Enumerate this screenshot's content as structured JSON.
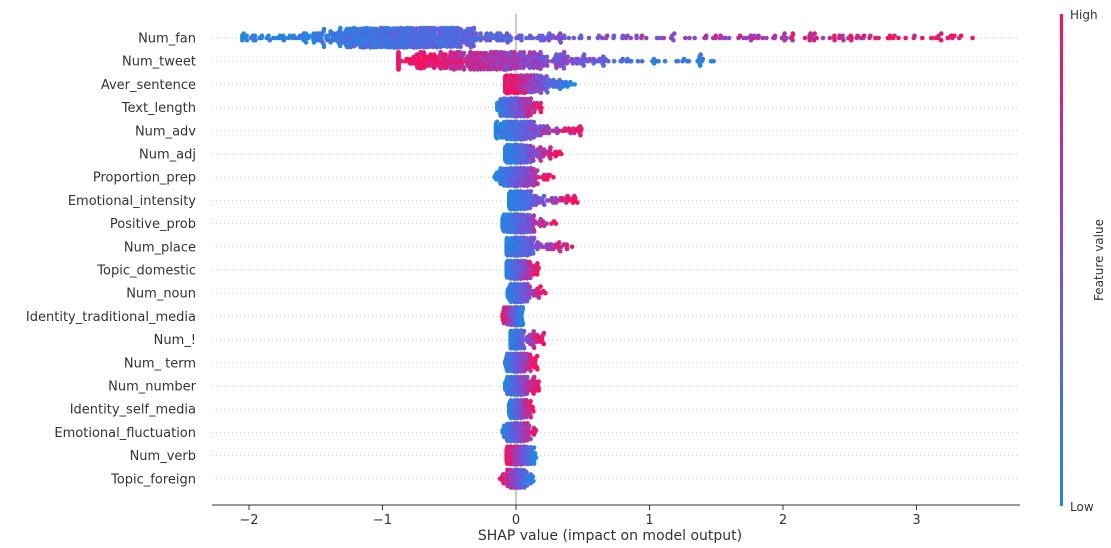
{
  "chart_data": {
    "type": "scatter",
    "subtype": "shap_beeswarm",
    "xlabel": "SHAP value (impact on model output)",
    "xlim": [
      -2.3,
      3.7
    ],
    "xticks": [
      -2,
      -1,
      0,
      1,
      2,
      3
    ],
    "xtick_labels": [
      "−2",
      "−1",
      "0",
      "1",
      "2",
      "3"
    ],
    "grid": false,
    "colorbar": {
      "label": "Feature value",
      "high_label": "High",
      "low_label": "Low",
      "low_color": "#1e88e5",
      "mid_color": "#7b4fd9",
      "high_color": "#ff0d57"
    },
    "features": [
      {
        "name": "Num_fan",
        "min": -2.05,
        "max": 3.42,
        "center": -0.85,
        "spread": 0.9,
        "trend": 1
      },
      {
        "name": "Num_tweet",
        "min": -0.88,
        "max": 1.48,
        "center": -0.25,
        "spread": 0.4,
        "trend": -1
      },
      {
        "name": "Aver_sentence",
        "min": -0.08,
        "max": 0.44,
        "center": 0.0,
        "spread": 0.12,
        "trend": -1
      },
      {
        "name": "Text_length",
        "min": -0.14,
        "max": 0.19,
        "center": 0.0,
        "spread": 0.06,
        "trend": 1
      },
      {
        "name": "Num_adv",
        "min": -0.15,
        "max": 0.49,
        "center": 0.0,
        "spread": 0.08,
        "trend": 1
      },
      {
        "name": "Num_adj",
        "min": -0.08,
        "max": 0.34,
        "center": -0.01,
        "spread": 0.06,
        "trend": 1
      },
      {
        "name": "Proportion_prep",
        "min": -0.16,
        "max": 0.28,
        "center": 0.0,
        "spread": 0.06,
        "trend": 1
      },
      {
        "name": "Emotional_intensity",
        "min": -0.05,
        "max": 0.46,
        "center": 0.0,
        "spread": 0.06,
        "trend": 1
      },
      {
        "name": "Positive_prob",
        "min": -0.1,
        "max": 0.3,
        "center": 0.0,
        "spread": 0.05,
        "trend": 1
      },
      {
        "name": "Num_place",
        "min": -0.07,
        "max": 0.42,
        "center": 0.0,
        "spread": 0.05,
        "trend": 1
      },
      {
        "name": "Topic_domestic",
        "min": -0.07,
        "max": 0.17,
        "center": 0.0,
        "spread": 0.04,
        "trend": 1
      },
      {
        "name": "Num_noun",
        "min": -0.06,
        "max": 0.22,
        "center": 0.0,
        "spread": 0.04,
        "trend": 1
      },
      {
        "name": "Identity_traditional_media",
        "min": -0.1,
        "max": 0.05,
        "center": 0.0,
        "spread": 0.03,
        "trend": -1
      },
      {
        "name": "Num_!",
        "min": -0.04,
        "max": 0.21,
        "center": 0.0,
        "spread": 0.03,
        "trend": 1
      },
      {
        "name": "Num_ term",
        "min": -0.08,
        "max": 0.16,
        "center": 0.0,
        "spread": 0.04,
        "trend": 1
      },
      {
        "name": "Num_number",
        "min": -0.08,
        "max": 0.17,
        "center": 0.0,
        "spread": 0.04,
        "trend": 1
      },
      {
        "name": "Identity_self_media",
        "min": -0.05,
        "max": 0.13,
        "center": 0.0,
        "spread": 0.03,
        "trend": 1
      },
      {
        "name": "Emotional_fluctuation",
        "min": -0.1,
        "max": 0.15,
        "center": 0.0,
        "spread": 0.04,
        "trend": 1
      },
      {
        "name": "Num_verb",
        "min": -0.07,
        "max": 0.15,
        "center": 0.0,
        "spread": 0.04,
        "trend": -1
      },
      {
        "name": "Topic_foreign",
        "min": -0.12,
        "max": 0.13,
        "center": 0.0,
        "spread": 0.03,
        "trend": -1
      }
    ]
  }
}
